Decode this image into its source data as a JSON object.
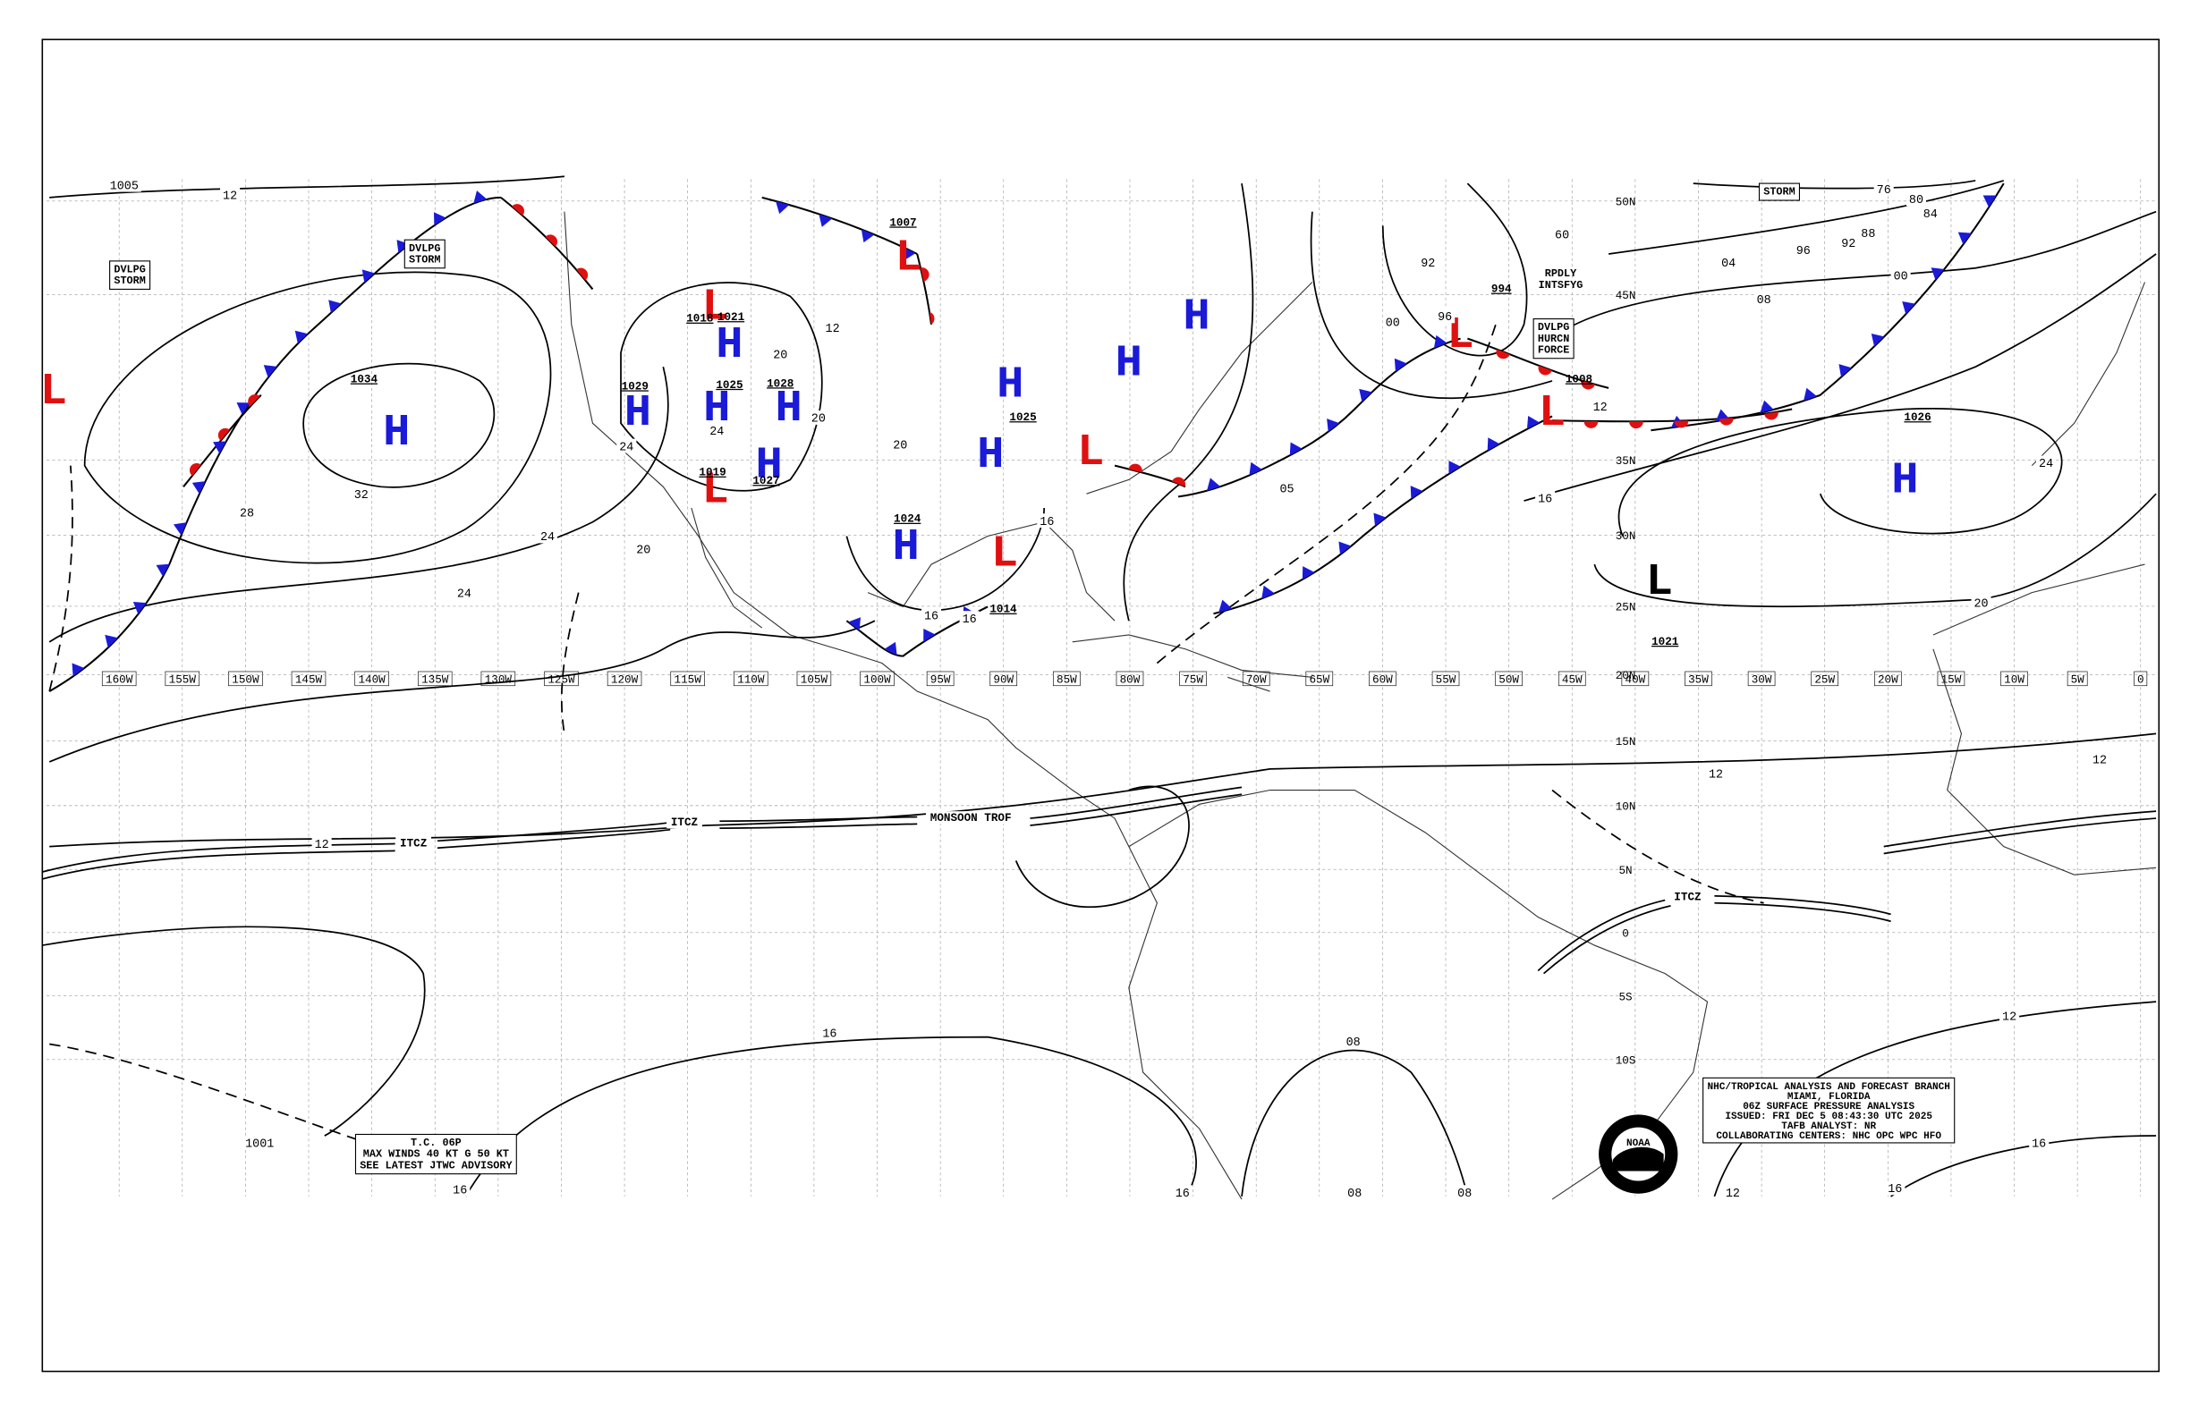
{
  "grid": {
    "lon_labels": [
      "160W",
      "155W",
      "150W",
      "145W",
      "140W",
      "135W",
      "130W",
      "125W",
      "120W",
      "115W",
      "110W",
      "105W",
      "100W",
      "95W",
      "90W",
      "85W",
      "80W",
      "75W",
      "70W",
      "65W",
      "60W",
      "55W",
      "50W",
      "45W",
      "40W",
      "35W",
      "30W",
      "25W",
      "20W",
      "15W",
      "10W",
      "5W",
      "0"
    ],
    "lat_labels": [
      "50N",
      "45N",
      "35N",
      "30N",
      "25N",
      "20N",
      "15N",
      "10N",
      "5N",
      "0",
      "5S",
      "10S"
    ]
  },
  "centers": [
    {
      "symbol": "L",
      "color": "#e01010"
    },
    {
      "symbol": "H",
      "color": "#1a1ad8",
      "pressure": "1034"
    },
    {
      "symbol": "L",
      "color": "#e01010",
      "pressure": "1018"
    },
    {
      "symbol": "H",
      "color": "#1a1ad8",
      "pressure": "1021"
    },
    {
      "symbol": "H",
      "color": "#1a1ad8",
      "pressure": "1029"
    },
    {
      "symbol": "H",
      "color": "#1a1ad8",
      "pressure": "1025"
    },
    {
      "symbol": "H",
      "color": "#1a1ad8",
      "pressure": "1028"
    },
    {
      "symbol": "H",
      "color": "#1a1ad8",
      "pressure": "1027"
    },
    {
      "symbol": "L",
      "color": "#e01010",
      "pressure": "1019"
    },
    {
      "symbol": "L",
      "color": "#e01010",
      "pressure": "1007"
    },
    {
      "symbol": "H",
      "color": "#1a1ad8"
    },
    {
      "symbol": "H",
      "color": "#1a1ad8",
      "pressure": "1025"
    },
    {
      "symbol": "H",
      "color": "#1a1ad8"
    },
    {
      "symbol": "H",
      "color": "#1a1ad8"
    },
    {
      "symbol": "L",
      "color": "#e01010"
    },
    {
      "symbol": "L",
      "color": "#e01010",
      "pressure": "1014"
    },
    {
      "symbol": "H",
      "color": "#1a1ad8",
      "pressure": "1024"
    },
    {
      "symbol": "L",
      "color": "#e01010",
      "pressure": "994"
    },
    {
      "symbol": "L",
      "color": "#e01010",
      "pressure": "1008"
    },
    {
      "symbol": "L",
      "color": "#000000",
      "pressure": "1021"
    },
    {
      "symbol": "H",
      "color": "#1a1ad8",
      "pressure": "1026"
    }
  ],
  "isobar_labels": [
    "12",
    "1005",
    "28",
    "32",
    "24",
    "20",
    "24",
    "24",
    "24",
    "20",
    "20",
    "20",
    "16",
    "16",
    "16",
    "12",
    "05",
    "00",
    "96",
    "92",
    "60",
    "04",
    "08",
    "00",
    "96",
    "92",
    "88",
    "84",
    "80",
    "76",
    "12",
    "16",
    "20",
    "24",
    "12",
    "12",
    "16",
    "16",
    "16",
    "08",
    "08",
    "08",
    "12",
    "16",
    "16",
    "12",
    "12",
    "1001"
  ],
  "text_boxes": [
    [
      "DVLPG",
      "STORM"
    ],
    [
      "DVLPG",
      "STORM"
    ],
    [
      "STORM"
    ],
    [
      "DVLPG",
      "HURCN",
      "FORCE"
    ]
  ],
  "annotations": [
    [
      "RPDLY",
      "INTSFYG"
    ]
  ],
  "features": [
    "ITCZ",
    "ITCZ",
    "MONSOON TROF",
    "ITCZ"
  ],
  "tropical_cyclone": [
    "T.C. 06P",
    "MAX WINDS 40 KT G 50 KT",
    "SEE LATEST JTWC ADVISORY"
  ],
  "info_box": [
    "NHC/TROPICAL ANALYSIS AND FORECAST BRANCH",
    "MIAMI, FLORIDA",
    "06Z SURFACE PRESSURE ANALYSIS",
    "ISSUED: FRI DEC 5 08:43:30 UTC 2025",
    "TAFB ANALYST: NR",
    "COLLABORATING CENTERS: NHC OPC WPC HFO"
  ],
  "logo": "NOAA"
}
